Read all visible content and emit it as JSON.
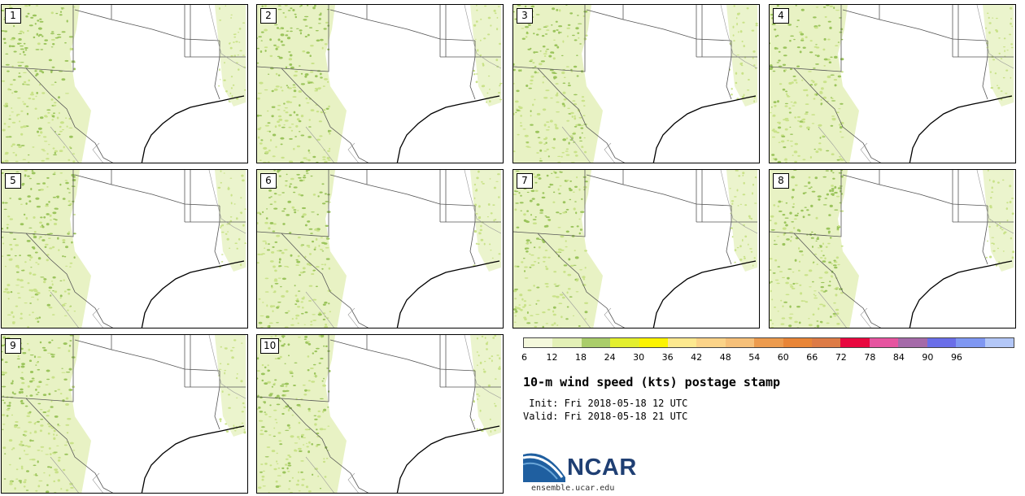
{
  "product_title": "10-m wind speed (kts) postage stamp",
  "init_line": " Init: Fri 2018-05-18 12 UTC",
  "valid_line": "Valid: Fri 2018-05-18 21 UTC",
  "logo_text": "NCAR",
  "logo_url": "ensemble.ucar.edu",
  "members": [
    {
      "label": "1",
      "idx": 0
    },
    {
      "label": "2",
      "idx": 1
    },
    {
      "label": "3",
      "idx": 2
    },
    {
      "label": "4",
      "idx": 3
    },
    {
      "label": "5",
      "idx": 4
    },
    {
      "label": "6",
      "idx": 5
    },
    {
      "label": "7",
      "idx": 6
    },
    {
      "label": "8",
      "idx": 7
    },
    {
      "label": "9",
      "idx": 8
    },
    {
      "label": "10",
      "idx": 9
    }
  ],
  "colorbar": {
    "tick_labels": [
      "6",
      "12",
      "18",
      "24",
      "30",
      "36",
      "42",
      "48",
      "54",
      "60",
      "66",
      "72",
      "78",
      "84",
      "90",
      "96"
    ],
    "colors": [
      "#f4f8dc",
      "#e3f0b6",
      "#aacd6a",
      "#e3ef2e",
      "#fcf300",
      "#fde98f",
      "#fbd388",
      "#f6c079",
      "#ec9b4e",
      "#e88537",
      "#dd7b46",
      "#e8083f",
      "#e654a0",
      "#a56aa9",
      "#6a6ee8",
      "#7f97f2",
      "#b3c7f7"
    ]
  },
  "map_colors": {
    "light": "#e8f2c4",
    "medium": "#c9e289",
    "dark": "#9bc45c",
    "boundary": "#555555",
    "coast": "#000000"
  }
}
